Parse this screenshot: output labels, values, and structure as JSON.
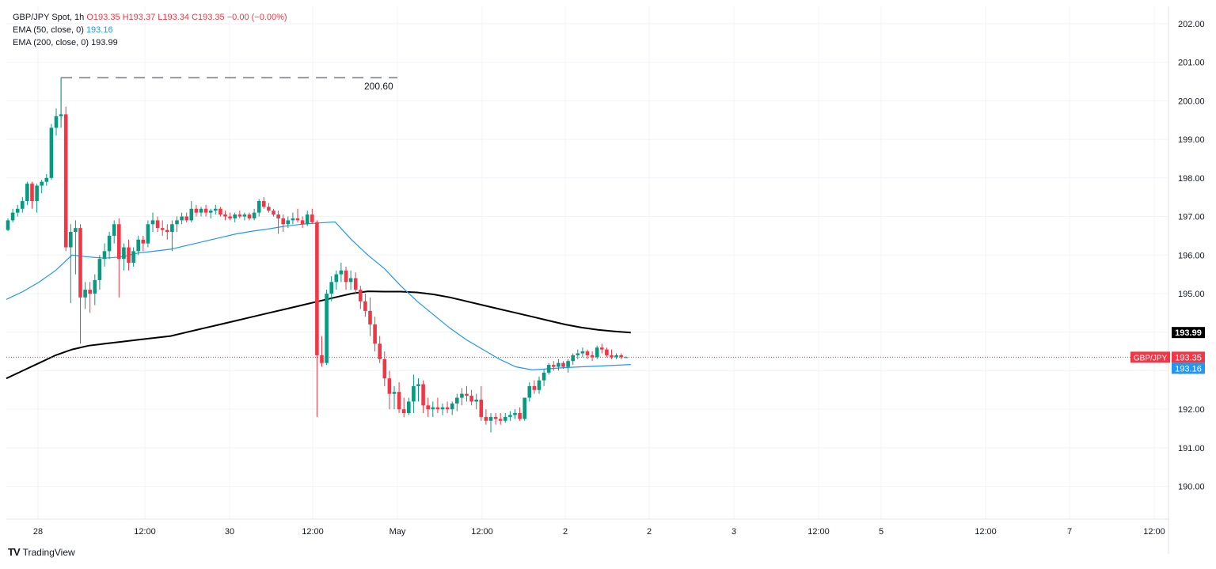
{
  "header": {
    "symbol_line": "GBP/JPY Spot, 1h",
    "ohlc": "O193.35  H193.37  L193.34  C193.35  −0.00 (−0.00%)",
    "ema50_label": "EMA (50, close, 0)",
    "ema50_value": "193.16",
    "ema200_label": "EMA (200, close, 0)",
    "ema200_value": "193.99"
  },
  "brand": {
    "logo_text": "TradingView",
    "logo_icon": "tradingview-logo-icon"
  },
  "colors": {
    "up": "#089981",
    "down": "#f23645",
    "ema50": "#2196f3",
    "ema200": "#000000",
    "grid": "#f0f3fa",
    "price_line": "#f23645"
  },
  "chart_data": {
    "type": "candlestick",
    "title": "GBP/JPY Spot, 1h",
    "y_axis_ticks": [
      190,
      191,
      192,
      193,
      194,
      195,
      196,
      197,
      198,
      199,
      200,
      201,
      202
    ],
    "y_tick_labels": [
      "190.00",
      "191.00",
      "192.00",
      "193.00",
      "194.00",
      "195.00",
      "196.00",
      "197.00",
      "198.00",
      "199.00",
      "200.00",
      "201.00",
      "202.00"
    ],
    "ylim": [
      189.15,
      202.45
    ],
    "x_tick_labels": [
      "28",
      "12:00",
      "30",
      "12:00",
      "May",
      "12:00",
      "2",
      "2",
      "3",
      "12:00",
      "5",
      "12:00",
      "7",
      "12:00"
    ],
    "grid": true,
    "annotations": [
      {
        "type": "high_marker",
        "value": 200.6,
        "label": "200.60"
      }
    ],
    "price_labels": [
      {
        "name": "EMA 200",
        "value": 193.99,
        "text": "193.99"
      },
      {
        "name": "GBP/JPY",
        "value": 193.35,
        "text": "193.35"
      },
      {
        "name": "EMA 50",
        "value": 193.16,
        "text": "193.16"
      }
    ],
    "last_price_tag": "GBP/JPY",
    "ema200_series": [
      192.8,
      193.0,
      193.2,
      193.4,
      193.55,
      193.65,
      193.7,
      193.75,
      193.8,
      193.85,
      193.9,
      194.0,
      194.1,
      194.2,
      194.3,
      194.4,
      194.5,
      194.6,
      194.7,
      194.8,
      194.9,
      195.0,
      195.06,
      195.05,
      195.05,
      195.03,
      194.98,
      194.9,
      194.8,
      194.7,
      194.6,
      194.5,
      194.4,
      194.3,
      194.2,
      194.12,
      194.06,
      194.02,
      193.99
    ],
    "ema50_series": [
      194.85,
      195.05,
      195.3,
      195.6,
      196.0,
      195.95,
      195.92,
      195.95,
      196.05,
      196.1,
      196.15,
      196.25,
      196.35,
      196.45,
      196.55,
      196.62,
      196.68,
      196.75,
      196.8,
      196.83,
      196.86,
      196.4,
      196.0,
      195.65,
      195.2,
      194.8,
      194.45,
      194.1,
      193.8,
      193.55,
      193.3,
      193.1,
      193.02,
      193.05,
      193.08,
      193.1,
      193.12,
      193.14,
      193.16
    ],
    "candles": [
      [
        196.65,
        196.95,
        196.62,
        196.9
      ],
      [
        196.9,
        197.2,
        196.85,
        197.1
      ],
      [
        197.1,
        197.3,
        197.0,
        197.2
      ],
      [
        197.2,
        197.5,
        197.1,
        197.4
      ],
      [
        197.4,
        197.9,
        197.3,
        197.85
      ],
      [
        197.85,
        197.9,
        197.2,
        197.4
      ],
      [
        197.4,
        197.85,
        197.1,
        197.8
      ],
      [
        197.8,
        197.95,
        197.6,
        197.9
      ],
      [
        197.9,
        198.1,
        197.8,
        198.0
      ],
      [
        198.0,
        199.4,
        197.95,
        199.3
      ],
      [
        199.3,
        199.8,
        199.1,
        199.6
      ],
      [
        199.6,
        200.6,
        199.5,
        199.65
      ],
      [
        199.65,
        199.85,
        196.1,
        196.2
      ],
      [
        196.2,
        196.8,
        194.75,
        196.6
      ],
      [
        196.6,
        196.9,
        195.5,
        196.7
      ],
      [
        196.7,
        196.8,
        193.7,
        194.9
      ],
      [
        194.9,
        195.3,
        194.6,
        195.1
      ],
      [
        195.1,
        195.3,
        194.5,
        195.0
      ],
      [
        195.0,
        195.5,
        194.7,
        195.35
      ],
      [
        195.35,
        196.0,
        195.1,
        195.9
      ],
      [
        195.9,
        196.3,
        195.7,
        196.1
      ],
      [
        196.1,
        196.6,
        195.9,
        196.5
      ],
      [
        196.5,
        196.9,
        196.3,
        196.8
      ],
      [
        196.8,
        196.95,
        194.9,
        195.9
      ],
      [
        195.9,
        196.3,
        195.6,
        196.2
      ],
      [
        196.2,
        196.4,
        195.6,
        195.8
      ],
      [
        195.8,
        196.2,
        195.7,
        196.1
      ],
      [
        196.1,
        196.5,
        196.0,
        196.4
      ],
      [
        196.4,
        196.5,
        196.1,
        196.3
      ],
      [
        196.3,
        196.9,
        196.2,
        196.8
      ],
      [
        196.8,
        197.1,
        196.6,
        196.9
      ],
      [
        196.9,
        197.0,
        196.6,
        196.7
      ],
      [
        196.7,
        196.9,
        196.5,
        196.65
      ],
      [
        196.65,
        196.8,
        196.4,
        196.6
      ],
      [
        196.6,
        196.9,
        196.1,
        196.8
      ],
      [
        196.8,
        197.0,
        196.6,
        196.9
      ],
      [
        196.9,
        197.1,
        196.8,
        197.0
      ],
      [
        197.0,
        197.1,
        196.85,
        196.9
      ],
      [
        196.9,
        197.4,
        196.85,
        197.2
      ],
      [
        197.2,
        197.3,
        197.0,
        197.1
      ],
      [
        197.1,
        197.25,
        197.0,
        197.2
      ],
      [
        197.2,
        197.3,
        197.0,
        197.1
      ],
      [
        197.1,
        197.2,
        196.95,
        197.15
      ],
      [
        197.15,
        197.3,
        197.05,
        197.2
      ],
      [
        197.2,
        197.25,
        197.0,
        197.05
      ],
      [
        197.05,
        197.15,
        196.9,
        197.0
      ],
      [
        197.0,
        197.1,
        196.9,
        196.95
      ],
      [
        196.95,
        197.1,
        196.85,
        197.05
      ],
      [
        197.05,
        197.15,
        196.95,
        197.0
      ],
      [
        197.0,
        197.1,
        196.9,
        197.05
      ],
      [
        197.05,
        197.1,
        196.9,
        196.95
      ],
      [
        196.95,
        197.2,
        196.9,
        197.1
      ],
      [
        197.1,
        197.45,
        197.0,
        197.4
      ],
      [
        197.4,
        197.5,
        197.2,
        197.25
      ],
      [
        197.25,
        197.35,
        197.1,
        197.15
      ],
      [
        197.15,
        197.2,
        197.0,
        197.05
      ],
      [
        197.05,
        197.15,
        196.55,
        196.95
      ],
      [
        196.95,
        197.05,
        196.6,
        196.8
      ],
      [
        196.8,
        197.0,
        196.7,
        196.9
      ],
      [
        196.9,
        197.1,
        196.8,
        196.95
      ],
      [
        196.95,
        197.2,
        196.85,
        196.9
      ],
      [
        196.9,
        197.0,
        196.7,
        196.8
      ],
      [
        196.8,
        197.15,
        196.75,
        197.05
      ],
      [
        197.05,
        197.2,
        196.8,
        196.85
      ],
      [
        196.85,
        196.9,
        191.8,
        193.4
      ],
      [
        193.4,
        193.9,
        193.1,
        193.2
      ],
      [
        193.2,
        195.1,
        193.15,
        195.0
      ],
      [
        195.0,
        195.45,
        194.8,
        195.3
      ],
      [
        195.3,
        195.6,
        195.1,
        195.5
      ],
      [
        195.5,
        195.8,
        195.3,
        195.6
      ],
      [
        195.6,
        195.7,
        195.1,
        195.3
      ],
      [
        195.3,
        195.6,
        195.1,
        195.4
      ],
      [
        195.4,
        195.55,
        195.0,
        195.1
      ],
      [
        195.1,
        195.2,
        194.6,
        194.8
      ],
      [
        194.8,
        195.0,
        194.4,
        194.55
      ],
      [
        194.55,
        194.9,
        193.9,
        194.2
      ],
      [
        194.2,
        194.4,
        193.5,
        193.7
      ],
      [
        193.7,
        193.9,
        193.2,
        193.3
      ],
      [
        193.3,
        193.5,
        192.6,
        192.8
      ],
      [
        192.8,
        193.0,
        192.0,
        192.4
      ],
      [
        192.4,
        192.6,
        192.0,
        192.45
      ],
      [
        192.45,
        192.7,
        191.9,
        192.0
      ],
      [
        192.0,
        192.3,
        191.8,
        191.9
      ],
      [
        191.9,
        192.3,
        191.85,
        192.2
      ],
      [
        192.2,
        192.9,
        191.9,
        192.6
      ],
      [
        192.6,
        192.8,
        192.2,
        192.65
      ],
      [
        192.65,
        192.75,
        191.9,
        192.1
      ],
      [
        192.1,
        192.3,
        191.8,
        192.0
      ],
      [
        192.0,
        192.2,
        191.8,
        192.05
      ],
      [
        192.05,
        192.3,
        191.9,
        192.0
      ],
      [
        192.0,
        192.15,
        191.85,
        192.05
      ],
      [
        192.05,
        192.2,
        191.9,
        192.0
      ],
      [
        192.0,
        192.2,
        191.85,
        192.15
      ],
      [
        192.15,
        192.4,
        191.95,
        192.3
      ],
      [
        192.3,
        192.55,
        192.1,
        192.4
      ],
      [
        192.4,
        192.6,
        192.2,
        192.35
      ],
      [
        192.35,
        192.5,
        192.1,
        192.2
      ],
      [
        192.2,
        192.4,
        192.0,
        192.25
      ],
      [
        192.25,
        192.6,
        191.7,
        191.8
      ],
      [
        191.8,
        192.0,
        191.6,
        191.7
      ],
      [
        191.7,
        191.9,
        191.4,
        191.8
      ],
      [
        191.8,
        191.9,
        191.6,
        191.75
      ],
      [
        191.75,
        191.9,
        191.6,
        191.7
      ],
      [
        191.7,
        191.9,
        191.65,
        191.8
      ],
      [
        191.8,
        191.95,
        191.7,
        191.85
      ],
      [
        191.85,
        192.0,
        191.75,
        191.9
      ],
      [
        191.9,
        192.05,
        191.7,
        191.75
      ],
      [
        191.75,
        192.3,
        191.7,
        192.3
      ],
      [
        192.3,
        192.7,
        192.2,
        192.6
      ],
      [
        192.6,
        192.75,
        192.4,
        192.5
      ],
      [
        192.5,
        192.85,
        192.4,
        192.75
      ],
      [
        192.75,
        193.05,
        192.6,
        192.95
      ],
      [
        192.95,
        193.2,
        192.9,
        193.15
      ],
      [
        193.15,
        193.25,
        193.0,
        193.1
      ],
      [
        193.1,
        193.3,
        193.0,
        193.2
      ],
      [
        193.2,
        193.25,
        193.05,
        193.1
      ],
      [
        193.1,
        193.3,
        192.95,
        193.25
      ],
      [
        193.25,
        193.45,
        193.15,
        193.4
      ],
      [
        193.4,
        193.55,
        193.3,
        193.45
      ],
      [
        193.45,
        193.6,
        193.35,
        193.5
      ],
      [
        193.5,
        193.55,
        193.3,
        193.4
      ],
      [
        193.4,
        193.5,
        193.25,
        193.35
      ],
      [
        193.35,
        193.65,
        193.3,
        193.6
      ],
      [
        193.6,
        193.7,
        193.45,
        193.55
      ],
      [
        193.55,
        193.6,
        193.35,
        193.4
      ],
      [
        193.4,
        193.55,
        193.3,
        193.35
      ],
      [
        193.35,
        193.45,
        193.3,
        193.4
      ],
      [
        193.4,
        193.45,
        193.3,
        193.35
      ],
      [
        193.35,
        193.37,
        193.34,
        193.35
      ]
    ]
  }
}
